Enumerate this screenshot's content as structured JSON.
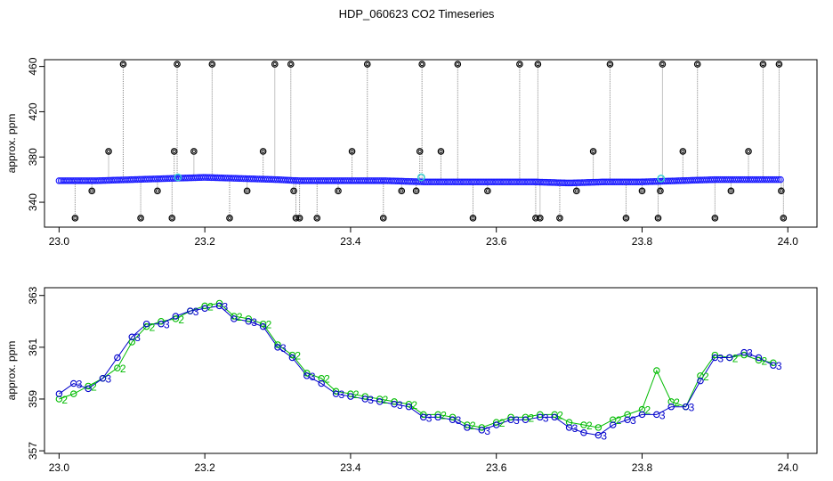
{
  "title": "HDP_060623  CO2 Timeseries",
  "chart_data": [
    {
      "type": "scatter",
      "id": "top",
      "ylabel": "approx. ppm",
      "xlim": [
        22.98,
        24.04
      ],
      "ylim": [
        318,
        466
      ],
      "x_ticks": [
        "23.0",
        "23.2",
        "23.4",
        "23.6",
        "23.8",
        "24.0"
      ],
      "y_ticks": [
        "340",
        "380",
        "420",
        "460"
      ],
      "colors": {
        "baseline": "#1a1aff",
        "highlight": "#33cccc",
        "outlier": "#000000",
        "vline": "#888888"
      },
      "baseline": {
        "x": [
          23.0,
          23.05,
          23.1,
          23.15,
          23.2,
          23.25,
          23.3,
          23.33,
          23.4,
          23.45,
          23.5,
          23.55,
          23.6,
          23.65,
          23.7,
          23.75,
          23.8,
          23.85,
          23.9,
          23.95,
          23.99
        ],
        "y": [
          359,
          359,
          360,
          361,
          362,
          361,
          360,
          359,
          359,
          359,
          358,
          358,
          358,
          358,
          357,
          358,
          358,
          359,
          360,
          360,
          360
        ]
      },
      "highlights": {
        "x": [
          23.163,
          23.497,
          23.826
        ],
        "y": [
          362,
          362,
          361
        ]
      },
      "outliers": {
        "x": [
          23.022,
          23.045,
          23.068,
          23.088,
          23.112,
          23.135,
          23.155,
          23.158,
          23.162,
          23.185,
          23.21,
          23.234,
          23.258,
          23.28,
          23.296,
          23.318,
          23.322,
          23.325,
          23.33,
          23.354,
          23.383,
          23.402,
          23.423,
          23.445,
          23.47,
          23.49,
          23.495,
          23.498,
          23.524,
          23.547,
          23.568,
          23.588,
          23.632,
          23.654,
          23.657,
          23.66,
          23.687,
          23.71,
          23.733,
          23.756,
          23.778,
          23.8,
          23.822,
          23.825,
          23.828,
          23.856,
          23.876,
          23.9,
          23.922,
          23.946,
          23.966,
          23.988,
          23.991,
          23.994
        ],
        "y": [
          326,
          350,
          385,
          462,
          326,
          350,
          326,
          385,
          462,
          385,
          462,
          326,
          350,
          385,
          462,
          462,
          350,
          326,
          326,
          326,
          350,
          385,
          462,
          326,
          350,
          350,
          385,
          462,
          385,
          462,
          326,
          350,
          462,
          326,
          462,
          326,
          326,
          350,
          385,
          462,
          326,
          350,
          326,
          350,
          462,
          385,
          462,
          326,
          350,
          385,
          462,
          462,
          350,
          326
        ]
      }
    },
    {
      "type": "line",
      "id": "bottom",
      "ylabel": "approx. ppm",
      "xlim": [
        22.98,
        24.04
      ],
      "ylim": [
        356.9,
        363.3
      ],
      "x_ticks": [
        "23.0",
        "23.2",
        "23.4",
        "23.6",
        "23.8",
        "24.0"
      ],
      "y_ticks": [
        "357",
        "359",
        "361",
        "363"
      ],
      "series": [
        {
          "marker": "2",
          "color": "#00bb00",
          "x": [
            23.0,
            23.02,
            23.04,
            23.06,
            23.08,
            23.1,
            23.12,
            23.14,
            23.16,
            23.18,
            23.2,
            23.22,
            23.24,
            23.26,
            23.28,
            23.3,
            23.32,
            23.34,
            23.36,
            23.38,
            23.4,
            23.42,
            23.44,
            23.46,
            23.48,
            23.5,
            23.52,
            23.54,
            23.56,
            23.58,
            23.6,
            23.62,
            23.64,
            23.66,
            23.68,
            23.7,
            23.72,
            23.74,
            23.76,
            23.78,
            23.8,
            23.82,
            23.84,
            23.86,
            23.88,
            23.9,
            23.92,
            23.94,
            23.96,
            23.98
          ],
          "y": [
            359.0,
            359.2,
            359.5,
            359.8,
            360.2,
            361.2,
            361.8,
            362.0,
            362.1,
            362.4,
            362.6,
            362.7,
            362.2,
            362.1,
            361.9,
            361.1,
            360.7,
            360.0,
            359.8,
            359.3,
            359.2,
            359.1,
            359.0,
            358.9,
            358.8,
            358.4,
            358.4,
            358.3,
            358.0,
            357.9,
            358.1,
            358.3,
            358.3,
            358.4,
            358.4,
            358.1,
            358.0,
            357.9,
            358.2,
            358.4,
            358.6,
            360.1,
            358.9,
            358.7,
            359.9,
            360.7,
            360.6,
            360.7,
            360.5,
            360.4
          ]
        },
        {
          "marker": "3",
          "color": "#0000cc",
          "x": [
            23.0,
            23.02,
            23.04,
            23.06,
            23.08,
            23.1,
            23.12,
            23.14,
            23.16,
            23.18,
            23.2,
            23.22,
            23.24,
            23.26,
            23.28,
            23.3,
            23.32,
            23.34,
            23.36,
            23.38,
            23.4,
            23.42,
            23.44,
            23.46,
            23.48,
            23.5,
            23.52,
            23.54,
            23.56,
            23.58,
            23.6,
            23.62,
            23.64,
            23.66,
            23.68,
            23.7,
            23.72,
            23.74,
            23.76,
            23.78,
            23.8,
            23.82,
            23.84,
            23.86,
            23.88,
            23.9,
            23.92,
            23.94,
            23.96,
            23.98
          ],
          "y": [
            359.2,
            359.6,
            359.4,
            359.8,
            360.6,
            361.4,
            361.9,
            361.9,
            362.2,
            362.4,
            362.5,
            362.6,
            362.1,
            362.0,
            361.8,
            361.0,
            360.6,
            359.9,
            359.6,
            359.2,
            359.1,
            359.0,
            358.9,
            358.8,
            358.7,
            358.3,
            358.3,
            358.2,
            357.9,
            357.8,
            358.0,
            358.2,
            358.2,
            358.3,
            358.3,
            357.9,
            357.7,
            357.6,
            358.0,
            358.2,
            358.4,
            358.4,
            358.7,
            358.7,
            359.7,
            360.6,
            360.6,
            360.8,
            360.6,
            360.3
          ]
        }
      ]
    }
  ]
}
